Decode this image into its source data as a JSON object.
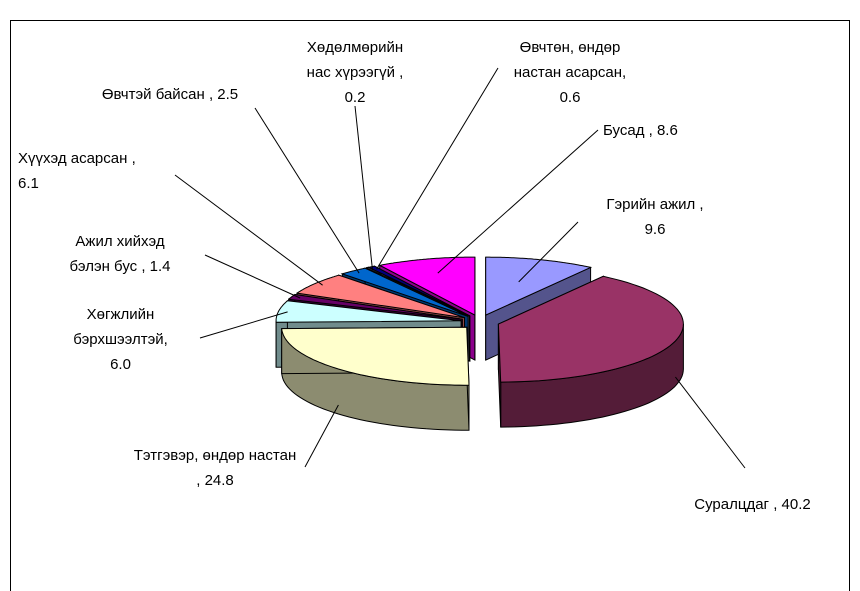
{
  "chart_data": {
    "type": "pie3d",
    "categories": [
      "Гэрийн ажил ,",
      "Суралцдаг ,",
      "Тэтгэвэр, өндөр настан ,",
      "Хөгжлийн бэрхшээлтэй,",
      "Ажил хийхэд бэлэн бус ,",
      "Хүүхэд асарсан ,",
      "Өвчтэй байсан ,",
      "Хөдөлмөрийн нас хүрээгүй ,",
      "Өвчтөн, өндөр настан асарсан,",
      "Бусад ,"
    ],
    "values": [
      9.6,
      40.2,
      24.8,
      6.0,
      1.4,
      6.1,
      2.5,
      0.2,
      0.6,
      8.6
    ],
    "value_labels": [
      "9.6",
      "40.2",
      "24.8",
      "6.0",
      "1.4",
      "6.1",
      "2.5",
      "0.2",
      "0.6",
      "8.6"
    ],
    "colors": [
      "#9999ff",
      "#993366",
      "#ffffcc",
      "#ccffff",
      "#660066",
      "#ff8080",
      "#0066cc",
      "#ccccff",
      "#000080",
      "#ff00ff"
    ]
  }
}
